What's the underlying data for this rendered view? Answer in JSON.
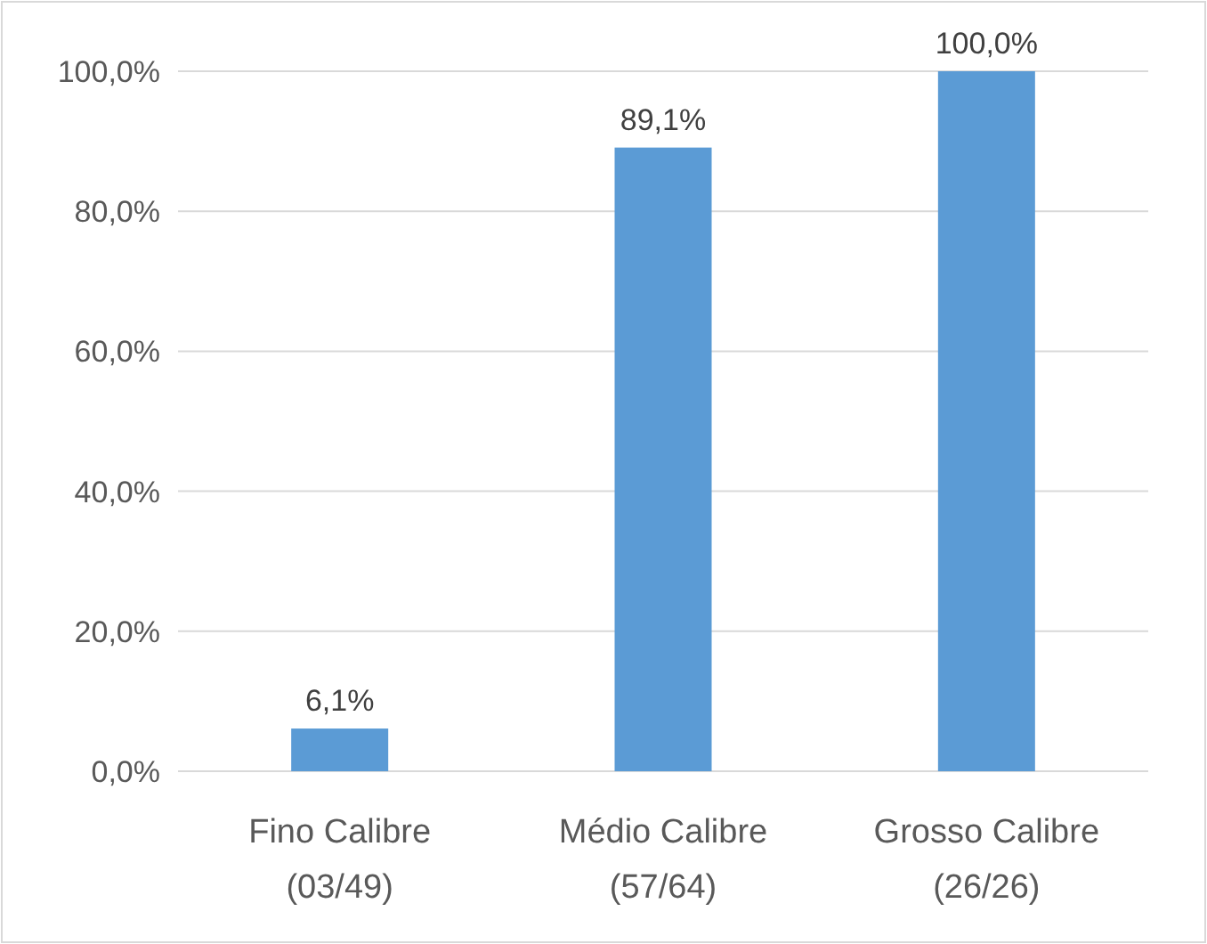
{
  "chart_data": {
    "type": "bar",
    "categories": [
      "Fino Calibre\n(03/49)",
      "Médio Calibre\n(57/64)",
      "Grosso Calibre\n(26/26)"
    ],
    "values": [
      6.1,
      89.1,
      100
    ],
    "value_labels": [
      "6,1%",
      "89,1%",
      "100,0%"
    ],
    "color": "#5b9bd5",
    "ylim": [
      0,
      100
    ],
    "yticks": [
      {
        "value": 0,
        "label": "0,0%"
      },
      {
        "value": 20,
        "label": "20,0%"
      },
      {
        "value": 40,
        "label": "40,0%"
      },
      {
        "value": 60,
        "label": "60,0%"
      },
      {
        "value": 80,
        "label": "80,0%"
      },
      {
        "value": 100,
        "label": "100,0%"
      }
    ],
    "grid": "y"
  }
}
